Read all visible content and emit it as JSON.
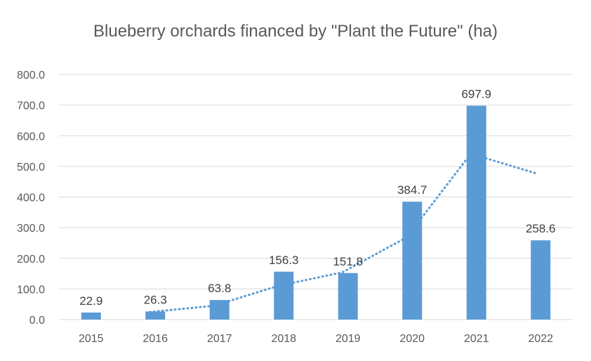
{
  "chart_data": {
    "type": "bar",
    "title": "Blueberry orchards financed by \"Plant the Future\" (ha)",
    "categories": [
      "2015",
      "2016",
      "2017",
      "2018",
      "2019",
      "2020",
      "2021",
      "2022"
    ],
    "series": [
      {
        "values": [
          22.9,
          26.3,
          63.8,
          156.3,
          151.8,
          384.7,
          697.9,
          258.6
        ]
      }
    ],
    "data_labels": [
      "22.9",
      "26.3",
      "63.8",
      "156.3",
      "151.8",
      "384.7",
      "697.9",
      "258.6"
    ],
    "trendline": {
      "type": "moving_average",
      "period": 2,
      "values": [
        null,
        24.6,
        45.05,
        110.05,
        154.05,
        268.25,
        541.3,
        478.25
      ]
    },
    "y_ticks": [
      "0.0",
      "100.0",
      "200.0",
      "300.0",
      "400.0",
      "500.0",
      "600.0",
      "700.0",
      "800.0"
    ],
    "ylim": [
      0,
      800
    ],
    "y_step": 100,
    "grid": true,
    "legend": "none",
    "xlabel": "",
    "ylabel": "",
    "colors": {
      "bar": "#5b9bd5",
      "trendline": "#5b9bd5",
      "grid": "#d9d9d9",
      "text": "#595959"
    }
  }
}
